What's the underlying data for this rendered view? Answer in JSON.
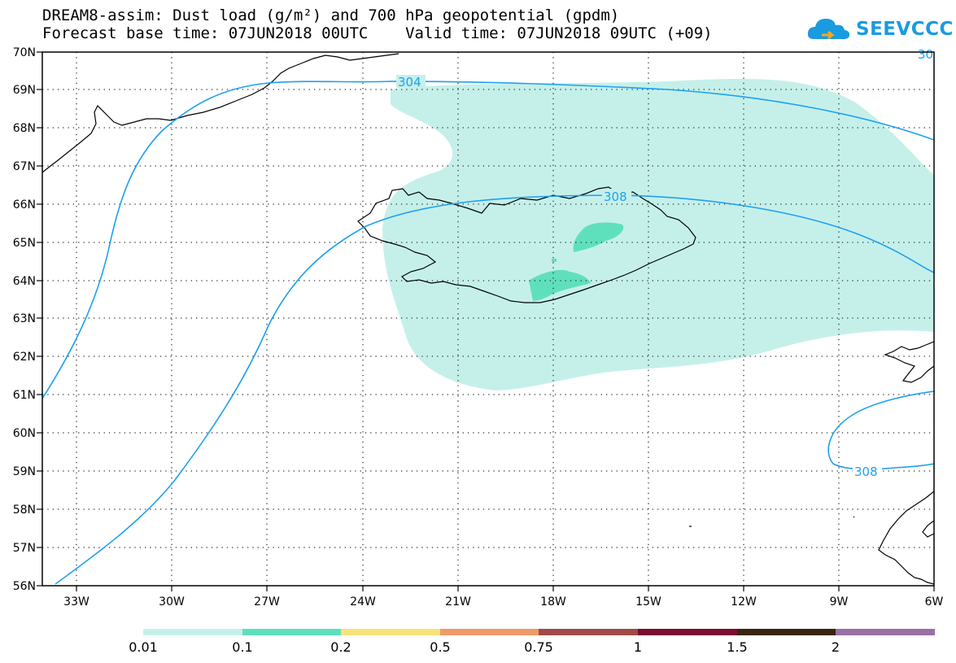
{
  "title": {
    "line1": "DREAM8-assim: Dust load (g/m²) and 700 hPa geopotential (gpdm)",
    "line2": "Forecast base time: 07JUN2018 00UTC    Valid time: 07JUN2018 09UTC (+09)"
  },
  "logo": {
    "text": "SEEVCCC"
  },
  "axes": {
    "lat_labels": [
      "70N",
      "69N",
      "68N",
      "67N",
      "66N",
      "65N",
      "64N",
      "63N",
      "62N",
      "61N",
      "60N",
      "59N",
      "58N",
      "57N",
      "56N"
    ],
    "lon_labels": [
      "33W",
      "30W",
      "27W",
      "24W",
      "21W",
      "18W",
      "15W",
      "12W",
      "9W",
      "6W"
    ],
    "lat_range": [
      56,
      70
    ],
    "lon_range": [
      -34.3,
      -6
    ],
    "grid": "dotted"
  },
  "contours": {
    "label_304": "304",
    "label_308_north": "308",
    "label_308_south": "308",
    "label_edge": "30"
  },
  "colorbar": {
    "colors": [
      "#c5f0ea",
      "#5fe0bc",
      "#f7e37a",
      "#ef9a6a",
      "#e78468",
      "#a14a48",
      "#7c0c30",
      "#3a2410",
      "#9a6fa4"
    ],
    "labels": [
      "0.01",
      "0.1",
      "0.2",
      "0.5",
      "0.75",
      "1",
      "1.5",
      "2"
    ]
  },
  "style": {
    "dust_light": "#c5f0ea",
    "dust_medium": "#5fe0bc",
    "contour": "#1ea0f0"
  }
}
